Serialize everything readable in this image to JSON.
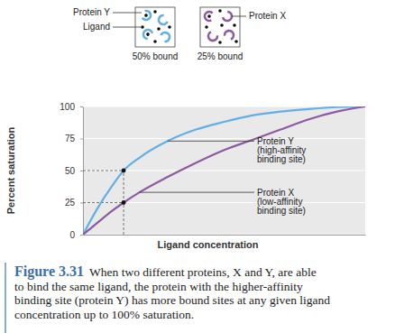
{
  "chart_data": {
    "type": "line",
    "x_label": "Ligand concentration",
    "y_label": "Percent saturation",
    "x": [
      0,
      5,
      10,
      14.4,
      20,
      30,
      40,
      50,
      60,
      70,
      80,
      90,
      100
    ],
    "series": [
      {
        "name": "Protein Y",
        "description": [
          "(high-affinity",
          "binding site)"
        ],
        "color": "#62aee6",
        "values": [
          0,
          20,
          37,
          50,
          60,
          73,
          82,
          88,
          93,
          96,
          98,
          99.5,
          100
        ]
      },
      {
        "name": "Protein X",
        "description": [
          "(low-affinity",
          "binding site)"
        ],
        "color": "#8b5a9f",
        "values": [
          0,
          9,
          18,
          25,
          33,
          45,
          56,
          66,
          74,
          82,
          90,
          96,
          100
        ]
      }
    ],
    "reference_points": [
      {
        "x": 14.4,
        "y": 50
      },
      {
        "x": 14.4,
        "y": 25
      }
    ],
    "xlim": [
      0,
      100
    ],
    "ylim": [
      0,
      100
    ],
    "yticks": [
      0,
      25,
      50,
      75,
      100
    ],
    "grid": true,
    "tick_labels": "y"
  },
  "illustration": {
    "protein_y": "Protein Y",
    "ligand": "Ligand",
    "protein_x": "Protein X",
    "panels": [
      "50% bound",
      "25% bound"
    ]
  },
  "caption": {
    "label": "Figure 3.31",
    "lines": [
      "When two different proteins, X and Y, are able",
      "to bind the same ligand, the protein with the higher-affinity",
      "binding site (protein Y) has more bound sites at any given ligand",
      "concentration up to 100% saturation."
    ]
  }
}
